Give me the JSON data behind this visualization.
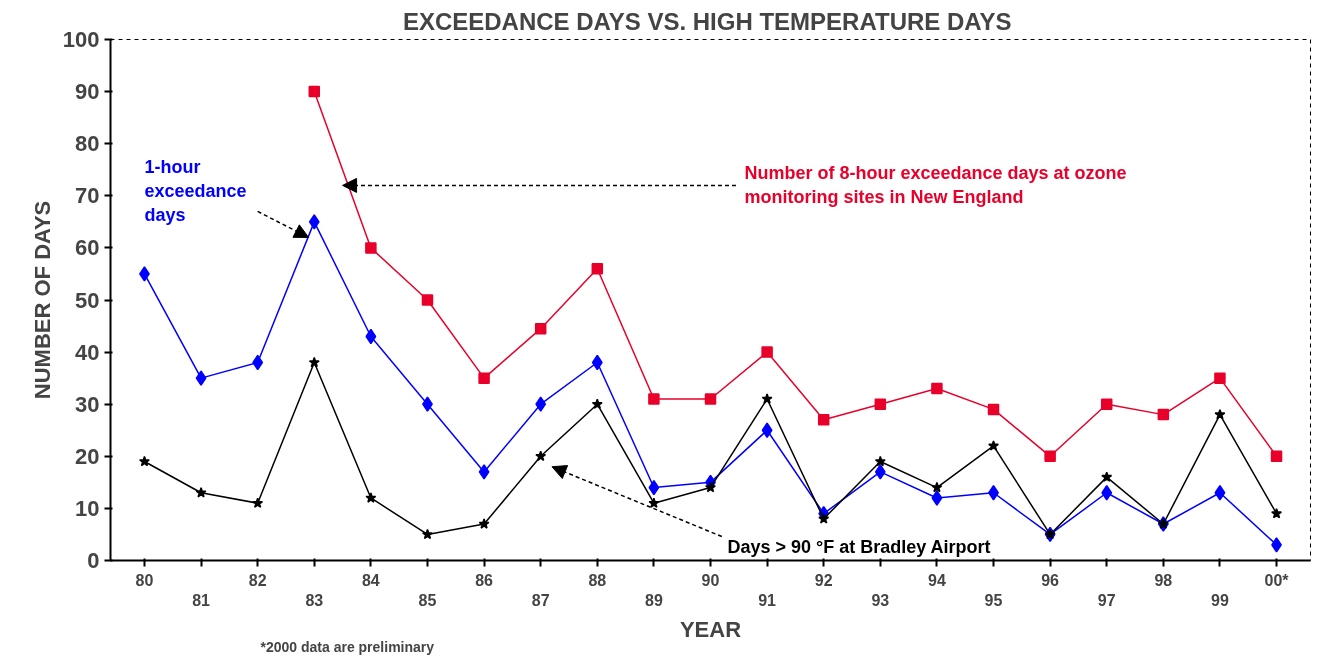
{
  "chart_data": {
    "type": "line",
    "title": "EXCEEDANCE DAYS  VS. HIGH TEMPERATURE DAYS",
    "xlabel": "YEAR",
    "ylabel": "NUMBER OF DAYS",
    "categories": [
      "80",
      "81",
      "82",
      "83",
      "84",
      "85",
      "86",
      "87",
      "88",
      "89",
      "90",
      "91",
      "92",
      "93",
      "94",
      "95",
      "96",
      "97",
      "98",
      "99",
      "00*"
    ],
    "series": [
      {
        "name": "Number of 8-hour exceedance days at ozone monitoring sites in New England",
        "color": "#e8002a",
        "marker": "square",
        "values": [
          null,
          null,
          null,
          90,
          60,
          50,
          35,
          44.5,
          56,
          31,
          31,
          40,
          27,
          30,
          33,
          29,
          20,
          30,
          28,
          35,
          20
        ]
      },
      {
        "name": "1-hour exceedance days",
        "color": "#0000ff",
        "marker": "diamond",
        "values": [
          55,
          35,
          38,
          65,
          43,
          30,
          17,
          30,
          38,
          14,
          15,
          25,
          9,
          17,
          12,
          13,
          5,
          13,
          7,
          13,
          3
        ]
      },
      {
        "name": "Days > 90 °F at Bradley Airport",
        "color": "#000000",
        "marker": "star",
        "values": [
          19,
          13,
          11,
          38,
          12,
          5,
          7,
          20,
          30,
          11,
          14,
          31,
          8,
          19,
          14,
          22,
          5,
          16,
          7,
          28,
          9
        ]
      }
    ],
    "ylim": [
      0,
      100
    ],
    "yticks": [
      0,
      10,
      20,
      30,
      40,
      50,
      60,
      70,
      80,
      90,
      100
    ],
    "grid": false,
    "annotations": [
      "*2000 data are preliminary"
    ]
  }
}
